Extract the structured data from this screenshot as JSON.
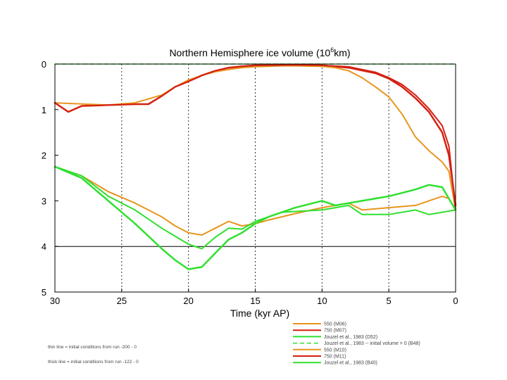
{
  "chart_data": {
    "type": "line",
    "title": "Northern Hemisphere ice volume (10",
    "title_sup": "6",
    "title_suffix": "km)",
    "xlabel": "Time (kyr AP)",
    "ylabel": "",
    "xlim": [
      30,
      0
    ],
    "ylim": [
      0,
      5
    ],
    "x_ticks": [
      30,
      25,
      20,
      15,
      10,
      5,
      0
    ],
    "x_tick_labels": [
      "30",
      "25",
      "20",
      "15",
      "10",
      "5",
      "0"
    ],
    "y_ticks": [
      0,
      1,
      2,
      3,
      4,
      5
    ],
    "y_tick_labels": [
      "0",
      "1",
      "2",
      "3",
      "4",
      "5"
    ],
    "dotted_vlines": [
      25,
      20,
      15,
      10,
      5
    ],
    "solid_hlines": [
      4
    ],
    "series": [
      {
        "name": "550  (M06)",
        "color": "#e8951d",
        "width": 2,
        "dash": "",
        "x": [
          30,
          28,
          26,
          24,
          22,
          21,
          20,
          19,
          18,
          17,
          16,
          15,
          14,
          12,
          10,
          8,
          7,
          5,
          3,
          1,
          0.5,
          0
        ],
        "y": [
          2.25,
          2.45,
          2.8,
          3.05,
          3.35,
          3.55,
          3.7,
          3.75,
          3.6,
          3.45,
          3.55,
          3.5,
          3.42,
          3.28,
          3.15,
          3.05,
          3.2,
          3.15,
          3.1,
          2.9,
          2.95,
          3.2
        ]
      },
      {
        "name": "750  (M07)",
        "color": "#d42011",
        "width": 2.5,
        "dash": "",
        "x": [
          30,
          29,
          28,
          26,
          24,
          23,
          22,
          21,
          20,
          19,
          18,
          17,
          16,
          15,
          12,
          10,
          8,
          6,
          5,
          4,
          3,
          2,
          1,
          0.5,
          0
        ],
        "y": [
          0.85,
          1.05,
          0.92,
          0.9,
          0.88,
          0.88,
          0.7,
          0.5,
          0.38,
          0.25,
          0.15,
          0.08,
          0.05,
          0.03,
          0.02,
          0.03,
          0.08,
          0.2,
          0.32,
          0.5,
          0.75,
          1.05,
          1.5,
          2.0,
          3.1
        ]
      },
      {
        "name": "Jouzel et al., 1983 (D52)",
        "color": "#2ee02e",
        "width": 2,
        "dash": "",
        "x": [
          30,
          28,
          26,
          24,
          22,
          20,
          19,
          18,
          17,
          16,
          15,
          13,
          10,
          8,
          7,
          5,
          3,
          2,
          1,
          0
        ],
        "y": [
          2.25,
          2.45,
          2.9,
          3.2,
          3.6,
          3.95,
          4.05,
          3.8,
          3.6,
          3.62,
          3.45,
          3.25,
          3.2,
          3.1,
          3.3,
          3.3,
          3.2,
          3.3,
          3.25,
          3.2
        ]
      },
      {
        "name": "Jouzel et al., 1983 -- initial volume = 0 (B48)",
        "color": "#2ee02e",
        "width": 1.5,
        "dash": "6,4",
        "x": [
          30,
          0
        ],
        "y": [
          0.0,
          0.0
        ]
      },
      {
        "name": "550  (M10)",
        "color": "#e8951d",
        "width": 2,
        "dash": "",
        "x": [
          30,
          26,
          24,
          22,
          21,
          20,
          19,
          18,
          17,
          16,
          15,
          14,
          13,
          12,
          10,
          9,
          8,
          7,
          6,
          5,
          4,
          3,
          2,
          1,
          0.5,
          0
        ],
        "y": [
          0.85,
          0.9,
          0.85,
          0.68,
          0.5,
          0.35,
          0.25,
          0.17,
          0.12,
          0.08,
          0.06,
          0.05,
          0.04,
          0.04,
          0.05,
          0.08,
          0.15,
          0.3,
          0.5,
          0.72,
          1.1,
          1.6,
          1.9,
          2.15,
          2.35,
          3.2
        ]
      },
      {
        "name": "750  (M11)",
        "color": "#d42011",
        "width": 2,
        "dash": "",
        "x": [
          30,
          29,
          28,
          26,
          24,
          23,
          22,
          21,
          20,
          19,
          18,
          17,
          16,
          15,
          12,
          10,
          8,
          6,
          5,
          4,
          3,
          2,
          1,
          0.5,
          0
        ],
        "y": [
          0.85,
          1.05,
          0.92,
          0.9,
          0.88,
          0.88,
          0.7,
          0.5,
          0.38,
          0.25,
          0.15,
          0.08,
          0.05,
          0.03,
          0.02,
          0.03,
          0.06,
          0.18,
          0.3,
          0.45,
          0.68,
          0.98,
          1.35,
          1.8,
          3.2
        ]
      },
      {
        "name": "Jouzel et al., 1983 (B40)",
        "color": "#2ee02e",
        "width": 2.5,
        "dash": "",
        "x": [
          30,
          28,
          26,
          24,
          22,
          21,
          20,
          19,
          18,
          17,
          16,
          15,
          14,
          12,
          10,
          9,
          8,
          7,
          5,
          3,
          2,
          1,
          0
        ],
        "y": [
          2.25,
          2.5,
          3.0,
          3.5,
          4.05,
          4.3,
          4.5,
          4.45,
          4.15,
          3.85,
          3.7,
          3.5,
          3.35,
          3.15,
          3.0,
          3.1,
          3.05,
          3.0,
          2.9,
          2.75,
          2.65,
          2.7,
          3.2
        ]
      }
    ],
    "legend_position": "bottom-right",
    "notes": [
      "thin line  =  initial conditions from run  -200 - 0",
      "thick line  =  initial conditions from run  -122 - 0"
    ]
  }
}
